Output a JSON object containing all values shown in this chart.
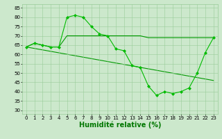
{
  "line1": {
    "x": [
      0,
      1,
      2,
      3,
      4,
      5,
      6,
      7,
      8,
      9,
      10,
      11,
      12,
      13,
      14,
      15,
      16,
      17,
      18,
      19,
      20,
      21,
      22,
      23
    ],
    "y": [
      64,
      66,
      65,
      64,
      64,
      80,
      81,
      80,
      75,
      71,
      70,
      63,
      62,
      54,
      53,
      43,
      38,
      40,
      39,
      40,
      42,
      50,
      61,
      69
    ],
    "color": "#00bb00",
    "marker": "D",
    "markersize": 2,
    "linewidth": 0.8
  },
  "line2": {
    "x": [
      0,
      1,
      2,
      3,
      4,
      5,
      6,
      7,
      8,
      9,
      10,
      11,
      12,
      13,
      14,
      15,
      16,
      17,
      18,
      19,
      20,
      21,
      22,
      23
    ],
    "y": [
      64,
      66,
      65,
      64,
      64,
      70,
      70,
      70,
      70,
      70,
      70,
      70,
      70,
      70,
      70,
      69,
      69,
      69,
      69,
      69,
      69,
      69,
      69,
      69
    ],
    "color": "#009900",
    "linewidth": 0.8
  },
  "line3": {
    "x": [
      0,
      23
    ],
    "y": [
      64,
      46
    ],
    "color": "#009900",
    "linewidth": 0.8
  },
  "xlabel": "Humidité relative (%)",
  "xlim": [
    -0.5,
    23.5
  ],
  "ylim": [
    28,
    87
  ],
  "yticks": [
    30,
    35,
    40,
    45,
    50,
    55,
    60,
    65,
    70,
    75,
    80,
    85
  ],
  "xticks": [
    0,
    1,
    2,
    3,
    4,
    5,
    6,
    7,
    8,
    9,
    10,
    11,
    12,
    13,
    14,
    15,
    16,
    17,
    18,
    19,
    20,
    21,
    22,
    23
  ],
  "bg_color": "#cce8cc",
  "grid_color": "#99cc99",
  "xlabel_color": "#007700",
  "xlabel_fontsize": 7,
  "tick_fontsize": 5
}
